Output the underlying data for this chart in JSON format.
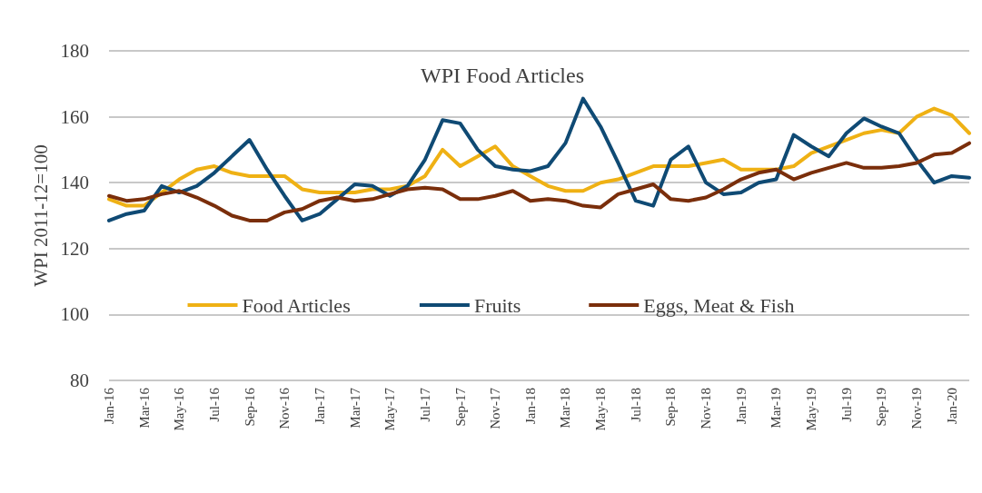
{
  "chart_data": {
    "type": "line",
    "title": "WPI Food Articles",
    "ylabel": "WPI 2011-12=100",
    "categories": [
      "Jan-16",
      null,
      "Mar-16",
      null,
      "May-16",
      null,
      "Jul-16",
      null,
      "Sep-16",
      null,
      "Nov-16",
      null,
      "Jan-17",
      null,
      "Mar-17",
      null,
      "May-17",
      null,
      "Jul-17",
      null,
      "Sep-17",
      null,
      "Nov-17",
      null,
      "Jan-18",
      null,
      "Mar-18",
      null,
      "May-18",
      null,
      "Jul-18",
      null,
      "Sep-18",
      null,
      "Nov-18",
      null,
      "Jan-19",
      null,
      "Mar-19",
      null,
      "May-19",
      null,
      "Jul-19",
      null,
      "Sep-19",
      null,
      "Nov-19",
      null,
      "Jan-20",
      null
    ],
    "series": [
      {
        "name": "Food Articles",
        "color": "#efb114",
        "values": [
          135,
          133,
          133,
          137,
          141,
          144,
          145,
          143,
          142,
          142,
          142,
          138,
          137,
          137,
          137,
          138,
          138,
          139,
          142,
          150,
          145,
          148,
          151,
          145,
          142,
          139,
          137.5,
          137.5,
          140,
          141,
          143,
          145,
          145,
          145,
          146,
          147,
          144,
          144,
          144,
          145,
          149,
          151,
          153,
          155,
          156,
          155,
          160,
          162.5,
          160.5,
          155
        ]
      },
      {
        "name": "Fruits",
        "color": "#0f4a74",
        "values": [
          128.5,
          130.5,
          131.5,
          139,
          137,
          139,
          143,
          148,
          153,
          144,
          136,
          128.5,
          130.5,
          135,
          139.5,
          139,
          136,
          139,
          147,
          159,
          158,
          150,
          145,
          144,
          143.5,
          145,
          152,
          165.5,
          157,
          146,
          134.5,
          133,
          147,
          151,
          140,
          136.5,
          137,
          140,
          141,
          154.5,
          151,
          148,
          155,
          159.5,
          157,
          155,
          147,
          140,
          142,
          141.5
        ]
      },
      {
        "name": "Eggs, Meat & Fish",
        "color": "#7a2e0b",
        "values": [
          136,
          134.5,
          135,
          136.5,
          137.5,
          135.5,
          133,
          130,
          128.5,
          128.5,
          131,
          132,
          134.5,
          135.5,
          134.5,
          135,
          136.5,
          138,
          138.5,
          138,
          135,
          135,
          136,
          137.5,
          134.5,
          135,
          134.5,
          133,
          132.5,
          136.5,
          138,
          139.5,
          135,
          134.5,
          135.5,
          138,
          141,
          143,
          144,
          141,
          143,
          144.5,
          146,
          144.5,
          144.5,
          145,
          146,
          148.5,
          149,
          152
        ]
      }
    ],
    "ylim": [
      80,
      180
    ],
    "yticks": [
      80,
      100,
      120,
      140,
      160,
      180
    ],
    "grid": "y",
    "legend": "bottom",
    "line_style": "solid",
    "marker": "none"
  }
}
